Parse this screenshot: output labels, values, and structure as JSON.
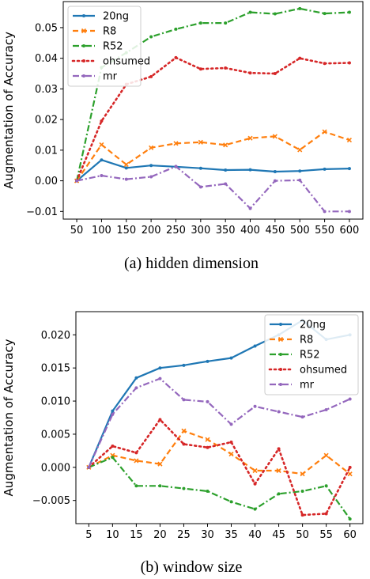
{
  "chart_data": [
    {
      "type": "line",
      "caption": "(a)  hidden dimension",
      "ylabel": "Augmentation of Accuracy",
      "xlabel": "",
      "x": [
        50,
        100,
        150,
        200,
        250,
        300,
        350,
        400,
        450,
        500,
        550,
        600
      ],
      "ylim": [
        -0.0125,
        0.0585
      ],
      "yticks": [
        -0.01,
        0.0,
        0.01,
        0.02,
        0.03,
        0.04,
        0.05
      ],
      "ytick_labels": [
        "−0.01",
        "0.00",
        "0.01",
        "0.02",
        "0.03",
        "0.04",
        "0.05"
      ],
      "legend_position": "top-left",
      "grid": false,
      "series": [
        {
          "name": "20ng",
          "color": "#1f77b4",
          "style": "solid",
          "marker": "circle",
          "values": [
            0.0,
            0.0068,
            0.0042,
            0.005,
            0.0046,
            0.0041,
            0.0035,
            0.0036,
            0.003,
            0.0032,
            0.0038,
            0.004
          ]
        },
        {
          "name": "R8",
          "color": "#ff7f0e",
          "style": "dashed",
          "marker": "x",
          "values": [
            0.0,
            0.0118,
            0.0053,
            0.0108,
            0.0122,
            0.0126,
            0.0117,
            0.0139,
            0.0145,
            0.0101,
            0.016,
            0.0133
          ]
        },
        {
          "name": "R52",
          "color": "#2ca02c",
          "style": "dashdot",
          "marker": "circle",
          "values": [
            0.0,
            0.037,
            0.0418,
            0.047,
            0.0495,
            0.0515,
            0.0515,
            0.055,
            0.0545,
            0.0562,
            0.0546,
            0.055
          ]
        },
        {
          "name": "ohsumed",
          "color": "#d62728",
          "style": "dotted",
          "marker": "circle",
          "values": [
            0.0,
            0.0195,
            0.0315,
            0.034,
            0.0402,
            0.0365,
            0.0368,
            0.0352,
            0.035,
            0.04,
            0.0383,
            0.0385
          ]
        },
        {
          "name": "mr",
          "color": "#9467bd",
          "style": "dashdot",
          "marker": "circle",
          "values": [
            0.0,
            0.0017,
            0.0005,
            0.0013,
            0.0047,
            -0.002,
            -0.001,
            -0.009,
            0.0,
            0.0002,
            -0.01,
            -0.01
          ]
        }
      ]
    },
    {
      "type": "line",
      "caption": "(b)  window size",
      "ylabel": "Augmentation of Accuracy",
      "xlabel": "",
      "x": [
        5,
        10,
        15,
        20,
        25,
        30,
        35,
        40,
        45,
        50,
        55,
        60
      ],
      "ylim": [
        -0.0085,
        0.0235
      ],
      "yticks": [
        -0.005,
        0.0,
        0.005,
        0.01,
        0.015,
        0.02
      ],
      "ytick_labels": [
        "−0.005",
        "0.000",
        "0.005",
        "0.010",
        "0.015",
        "0.020"
      ],
      "legend_position": "top-right",
      "grid": false,
      "series": [
        {
          "name": "20ng",
          "color": "#1f77b4",
          "style": "solid",
          "marker": "circle",
          "values": [
            0.0,
            0.0085,
            0.0135,
            0.015,
            0.0154,
            0.016,
            0.0165,
            0.0183,
            0.02,
            0.0222,
            0.0193,
            0.02
          ]
        },
        {
          "name": "R8",
          "color": "#ff7f0e",
          "style": "dashed",
          "marker": "x",
          "values": [
            0.0,
            0.0018,
            0.001,
            0.0005,
            0.0055,
            0.0042,
            0.002,
            -0.0005,
            -0.0005,
            -0.001,
            0.0018,
            -0.001
          ]
        },
        {
          "name": "R52",
          "color": "#2ca02c",
          "style": "dashdot",
          "marker": "circle",
          "values": [
            0.0,
            0.0015,
            -0.0028,
            -0.0028,
            -0.0032,
            -0.0036,
            -0.0052,
            -0.0063,
            -0.004,
            -0.0036,
            -0.0028,
            -0.0078
          ]
        },
        {
          "name": "ohsumed",
          "color": "#d62728",
          "style": "dotted",
          "marker": "circle",
          "values": [
            0.0,
            0.0032,
            0.0022,
            0.0072,
            0.0035,
            0.003,
            0.0038,
            -0.0025,
            0.0028,
            -0.0072,
            -0.007,
            0.0
          ]
        },
        {
          "name": "mr",
          "color": "#9467bd",
          "style": "dashdot",
          "marker": "circle",
          "values": [
            0.0,
            0.008,
            0.012,
            0.0134,
            0.0102,
            0.0099,
            0.0065,
            0.0092,
            0.0084,
            0.0076,
            0.0087,
            0.0103
          ]
        }
      ]
    }
  ]
}
